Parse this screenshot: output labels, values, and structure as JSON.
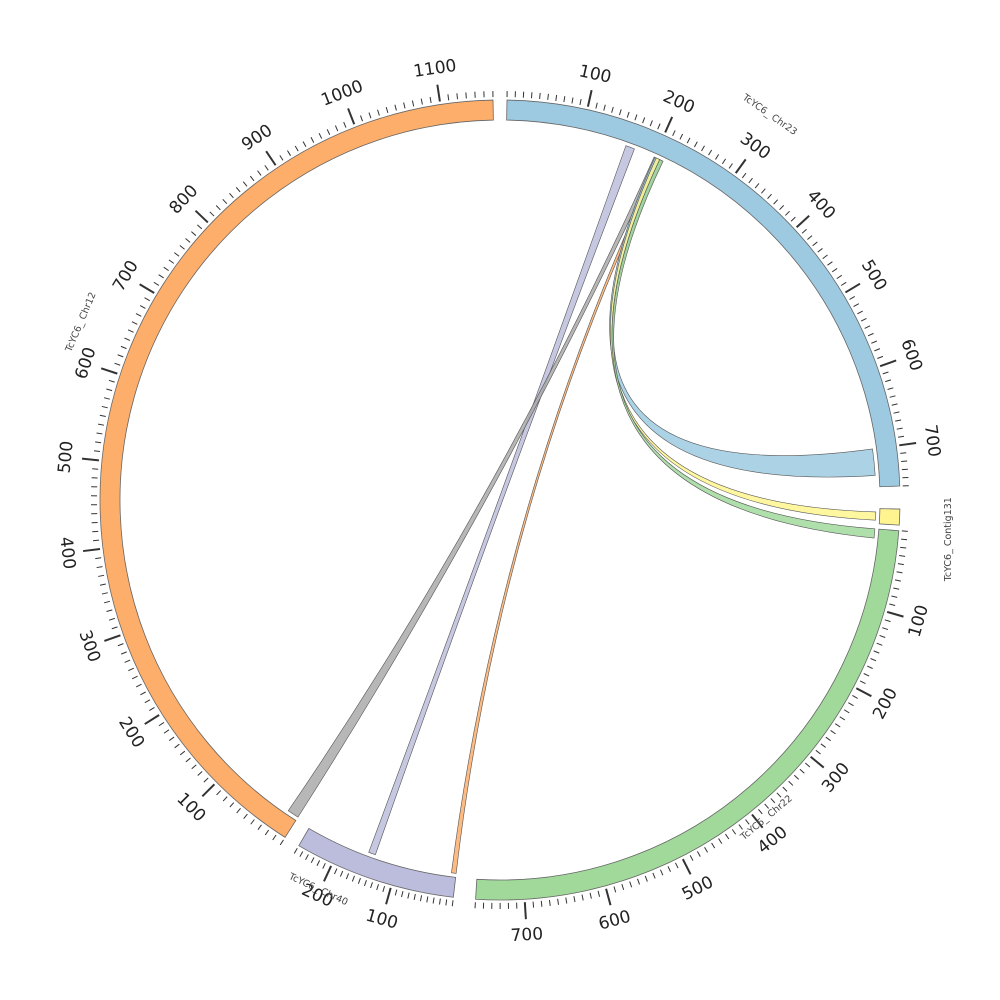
{
  "diagram": {
    "type": "circos",
    "segments": [
      {
        "id": "chr23",
        "name": "TcYC6_ Chr23",
        "length": 750,
        "color": "#9ecae1",
        "tick_labels": [
          "100",
          "200",
          "300",
          "400",
          "500",
          "600",
          "700"
        ]
      },
      {
        "id": "contig131",
        "name": "TcYC6_ Contig131",
        "length": 22,
        "color": "#fff48f",
        "tick_labels": []
      },
      {
        "id": "chr22",
        "name": "TcYC6_ Chr22",
        "length": 760,
        "color": "#a1d99b",
        "tick_labels": [
          "100",
          "200",
          "300",
          "400",
          "500",
          "600",
          "700"
        ]
      },
      {
        "id": "chr40",
        "name": "TcYC6_ Chr40",
        "length": 260,
        "color": "#bcbddc",
        "tick_labels": [
          "100",
          "200"
        ]
      },
      {
        "id": "chr12",
        "name": "TcYC6_ Chr12",
        "length": 1160,
        "color": "#fdae6b",
        "tick_labels": [
          "100",
          "200",
          "300",
          "400",
          "500",
          "600",
          "700",
          "800",
          "900",
          "1000",
          "1100"
        ]
      }
    ],
    "links": [
      {
        "from": "chr23",
        "from_range": [
          160,
          172
        ],
        "to": "chr40",
        "to_range": [
          140,
          152
        ],
        "color": "#bcbddc"
      },
      {
        "from": "chr23",
        "from_range": [
          200,
          206
        ],
        "to": "chr12",
        "to_range": [
          0,
          14
        ],
        "color": "#aaaaaa"
      },
      {
        "from": "chr23",
        "from_range": [
          207,
          211
        ],
        "to": "chr40",
        "to_range": [
          0,
          8
        ],
        "color": "#fdae6b"
      },
      {
        "from": "chr23",
        "from_range": [
          201,
          212
        ],
        "to": "chr23",
        "from2": true,
        "to_range": [
          700,
          735
        ],
        "color": "#9ecae1"
      },
      {
        "from": "chr23",
        "from_range": [
          203,
          208
        ],
        "to": "contig131",
        "to_range": [
          5,
          17
        ],
        "color": "#fff48f"
      },
      {
        "from": "chr23",
        "from_range": [
          208,
          213
        ],
        "to": "chr22",
        "to_range": [
          0,
          12
        ],
        "color": "#a1d99b"
      }
    ]
  }
}
